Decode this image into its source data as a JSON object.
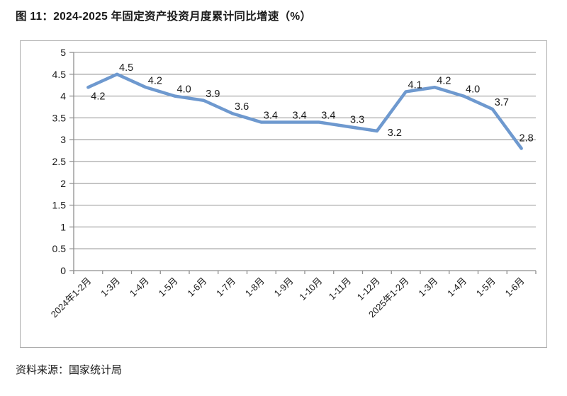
{
  "page": {
    "source": "资料来源：国家统计局"
  },
  "chart_data": {
    "type": "line",
    "title": "图 11：2024-2025 年固定资产投资月度累计同比增速（%）",
    "xlabel": "",
    "ylabel": "",
    "categories": [
      "2024年1-2月",
      "1-3月",
      "1-4月",
      "1-5月",
      "1-6月",
      "1-7月",
      "1-8月",
      "1-9月",
      "1-10月",
      "1-11月",
      "1-12月",
      "2025年1-2月",
      "1-3月",
      "1-4月",
      "1-5月",
      "1-6月"
    ],
    "values": [
      4.2,
      4.5,
      4.2,
      4.0,
      3.9,
      3.6,
      3.4,
      3.4,
      3.4,
      3.3,
      3.2,
      4.1,
      4.2,
      4.0,
      3.7,
      2.8
    ],
    "value_labels": [
      "4.2",
      "4.5",
      "4.2",
      "4.0",
      "3.9",
      "3.6",
      "3.4",
      "3.4",
      "3.4",
      "3.3",
      "3.2",
      "4.1",
      "4.2",
      "4.0",
      "3.7",
      "2.8"
    ],
    "ylim": [
      0,
      5
    ],
    "ytick_step": 0.5,
    "ytick_labels": [
      "0",
      "0.5",
      "1",
      "1.5",
      "2",
      "2.5",
      "3",
      "3.5",
      "4",
      "4.5",
      "5"
    ],
    "grid": true,
    "legend": "none",
    "x_label_rotation": -45,
    "colors": {
      "line": "#6e99cf",
      "grid": "#a8a8a8",
      "axis": "#8f8f8f",
      "text": "#1a1a1a",
      "frame": "#adadad"
    },
    "label_offsets": {
      "0": [
        14,
        17
      ],
      "10": [
        25,
        7
      ],
      "15": [
        7,
        -10
      ]
    },
    "default_label_offset": [
      13,
      -5
    ]
  }
}
